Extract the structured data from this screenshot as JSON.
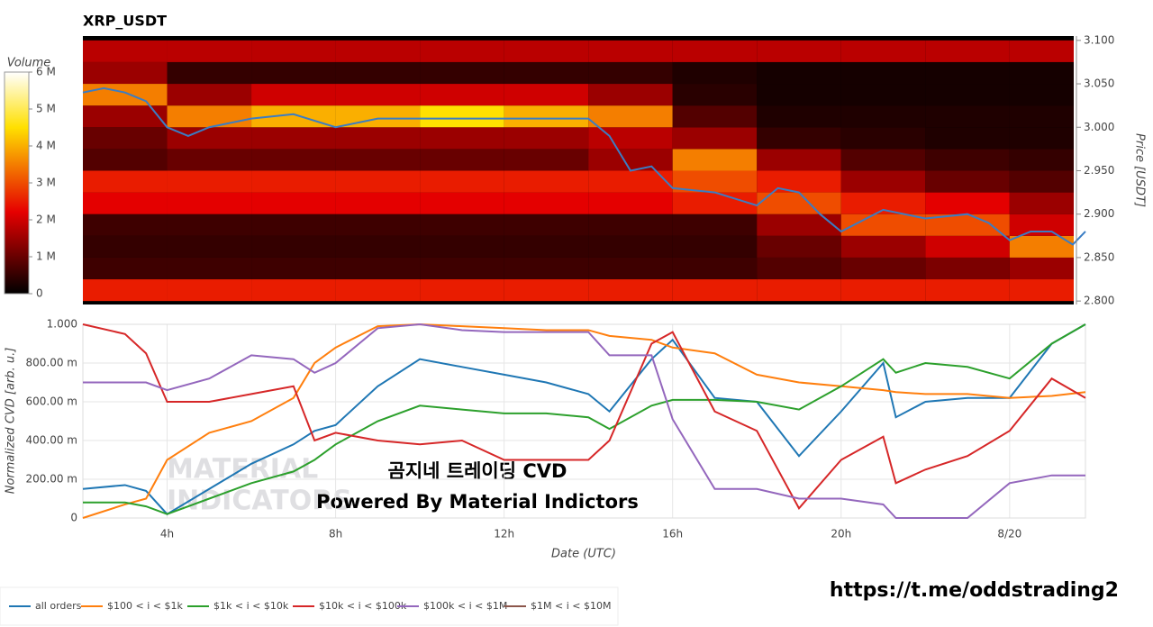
{
  "chart_data": [
    {
      "type": "heatmap",
      "title": "XRP_USDT",
      "colorbar_title": "Volume",
      "zlim": [
        0,
        6
      ],
      "zticks": [
        0,
        {
          "value": 1,
          "label": "1 M"
        },
        {
          "value": 2,
          "label": "2 M"
        },
        {
          "value": 3,
          "label": "3 M"
        },
        {
          "value": 4,
          "label": "4 M"
        },
        {
          "value": 5,
          "label": "5 M"
        },
        {
          "value": 6,
          "label": "6 M"
        }
      ],
      "y_label": "Price [USDT]",
      "ylim": [
        2.796,
        3.105
      ],
      "yticks": [
        {
          "value": 2.8,
          "label": "2.800"
        },
        {
          "value": 2.85,
          "label": "2.850"
        },
        {
          "value": 2.9,
          "label": "2.900"
        },
        {
          "value": 2.95,
          "label": "2.950"
        },
        {
          "value": 3.0,
          "label": "3.000"
        },
        {
          "value": 3.05,
          "label": "3.050"
        },
        {
          "value": 3.1,
          "label": "3.100"
        }
      ],
      "xlim": [
        2,
        25.8
      ],
      "time_bins": [
        2,
        4,
        6,
        8,
        10,
        12,
        14,
        16,
        18,
        20,
        22,
        24,
        26
      ],
      "price_bins": [
        2.8,
        2.825,
        2.85,
        2.875,
        2.9,
        2.925,
        2.95,
        2.975,
        3.0,
        3.025,
        3.05,
        3.075,
        3.1
      ],
      "volume": [
        [
          2.5,
          2.5,
          2.5,
          2.5,
          2.5,
          2.5,
          2.5,
          2.5,
          2.5,
          2.5,
          2.5,
          2.5
        ],
        [
          0.6,
          0.6,
          0.6,
          0.6,
          0.6,
          0.6,
          0.6,
          0.6,
          0.8,
          1.0,
          1.2,
          1.5
        ],
        [
          0.5,
          0.5,
          0.5,
          0.5,
          0.5,
          0.5,
          0.5,
          0.5,
          1.0,
          1.5,
          2.0,
          3.5
        ],
        [
          0.6,
          0.6,
          0.6,
          0.6,
          0.6,
          0.6,
          0.6,
          0.6,
          1.5,
          3.0,
          3.0,
          2.0
        ],
        [
          2.2,
          2.2,
          2.2,
          2.2,
          2.2,
          2.2,
          2.2,
          2.5,
          3.0,
          2.5,
          2.2,
          1.5
        ],
        [
          2.5,
          2.5,
          2.5,
          2.5,
          2.5,
          2.5,
          2.5,
          3.0,
          2.5,
          1.5,
          1.0,
          0.8
        ],
        [
          0.8,
          1.0,
          1.0,
          1.0,
          1.0,
          1.0,
          1.5,
          3.5,
          1.5,
          0.8,
          0.6,
          0.5
        ],
        [
          1.0,
          1.5,
          1.5,
          1.5,
          1.5,
          1.5,
          1.8,
          1.5,
          0.5,
          0.4,
          0.3,
          0.3
        ],
        [
          1.5,
          3.5,
          4.0,
          4.0,
          4.5,
          4.0,
          3.5,
          0.8,
          0.3,
          0.3,
          0.3,
          0.3
        ],
        [
          3.5,
          1.5,
          2.0,
          2.0,
          2.0,
          2.0,
          1.5,
          0.4,
          0.2,
          0.2,
          0.2,
          0.2
        ],
        [
          1.5,
          0.5,
          0.5,
          0.5,
          0.5,
          0.5,
          0.5,
          0.3,
          0.2,
          0.2,
          0.2,
          0.2
        ],
        [
          1.8,
          1.8,
          1.8,
          1.8,
          1.8,
          1.8,
          1.8,
          1.8,
          1.8,
          1.8,
          1.8,
          1.8
        ]
      ],
      "price_line": {
        "color": "#3a7dc4",
        "x": [
          2,
          2.5,
          3,
          3.5,
          4,
          4.5,
          5,
          6,
          7,
          8,
          9,
          10,
          11,
          12,
          13,
          14,
          14.5,
          15,
          15.5,
          16,
          17,
          18,
          18.5,
          19,
          19.5,
          20,
          21,
          22,
          23,
          23.5,
          24,
          24.5,
          25,
          25.5,
          25.8
        ],
        "values": [
          3.04,
          3.045,
          3.04,
          3.03,
          3.0,
          2.99,
          3.0,
          3.01,
          3.015,
          3.0,
          3.01,
          3.01,
          3.01,
          3.01,
          3.01,
          3.01,
          2.99,
          2.95,
          2.955,
          2.93,
          2.925,
          2.91,
          2.93,
          2.925,
          2.9,
          2.88,
          2.905,
          2.895,
          2.9,
          2.89,
          2.87,
          2.88,
          2.88,
          2.865,
          2.88
        ]
      }
    },
    {
      "type": "line",
      "x_label": "Date (UTC)",
      "y_label": "Normalized CVD [arb. u.]",
      "xlim": [
        2,
        25.8
      ],
      "xticks": [
        {
          "value": 4,
          "label": "4h"
        },
        {
          "value": 8,
          "label": "8h"
        },
        {
          "value": 12,
          "label": "12h"
        },
        {
          "value": 16,
          "label": "16h"
        },
        {
          "value": 20,
          "label": "20h"
        },
        {
          "value": 24,
          "label": "8/20"
        }
      ],
      "ylim": [
        0,
        1
      ],
      "yticks": [
        0,
        {
          "value": 0.2,
          "label": "200.00 m"
        },
        {
          "value": 0.4,
          "label": "400.00 m"
        },
        {
          "value": 0.6,
          "label": "600.00 m"
        },
        {
          "value": 0.8,
          "label": "800.00 m"
        },
        {
          "value": 1,
          "label": "1.000"
        }
      ],
      "grid": true,
      "x": [
        2,
        3,
        3.5,
        4,
        5,
        6,
        7,
        7.5,
        8,
        9,
        10,
        11,
        12,
        13,
        14,
        14.5,
        15.5,
        16,
        17,
        18,
        19,
        20,
        21,
        21.3,
        22,
        23,
        24,
        25,
        25.8
      ],
      "series": [
        {
          "name": "all orders",
          "color": "#1f77b4",
          "values": [
            0.15,
            0.17,
            0.14,
            0.02,
            0.15,
            0.28,
            0.38,
            0.45,
            0.48,
            0.68,
            0.82,
            0.78,
            0.74,
            0.7,
            0.64,
            0.55,
            0.82,
            0.92,
            0.62,
            0.6,
            0.32,
            0.55,
            0.8,
            0.52,
            0.6,
            0.62,
            0.62,
            0.9,
            1.0
          ]
        },
        {
          "name": "$100 < i < $1k",
          "color": "#ff7f0e",
          "values": [
            0.0,
            0.07,
            0.1,
            0.3,
            0.44,
            0.5,
            0.62,
            0.8,
            0.88,
            0.99,
            1.0,
            0.99,
            0.98,
            0.97,
            0.97,
            0.94,
            0.92,
            0.88,
            0.85,
            0.74,
            0.7,
            0.68,
            0.66,
            0.65,
            0.64,
            0.64,
            0.62,
            0.63,
            0.65
          ]
        },
        {
          "name": "$1k < i < $10k",
          "color": "#2ca02c",
          "values": [
            0.08,
            0.08,
            0.06,
            0.02,
            0.1,
            0.18,
            0.24,
            0.3,
            0.38,
            0.5,
            0.58,
            0.56,
            0.54,
            0.54,
            0.52,
            0.46,
            0.58,
            0.61,
            0.61,
            0.6,
            0.56,
            0.68,
            0.82,
            0.75,
            0.8,
            0.78,
            0.72,
            0.9,
            1.0
          ]
        },
        {
          "name": "$10k < i < $100k",
          "color": "#d62728",
          "values": [
            1.0,
            0.95,
            0.85,
            0.6,
            0.6,
            0.64,
            0.68,
            0.4,
            0.44,
            0.4,
            0.38,
            0.4,
            0.3,
            0.3,
            0.3,
            0.4,
            0.9,
            0.96,
            0.55,
            0.45,
            0.05,
            0.3,
            0.42,
            0.18,
            0.25,
            0.32,
            0.45,
            0.72,
            0.62
          ]
        },
        {
          "name": "$100k < i < $1M",
          "color": "#9467bd",
          "values": [
            0.7,
            0.7,
            0.7,
            0.66,
            0.72,
            0.84,
            0.82,
            0.75,
            0.8,
            0.98,
            1.0,
            0.97,
            0.96,
            0.96,
            0.96,
            0.84,
            0.84,
            0.51,
            0.15,
            0.15,
            0.1,
            0.1,
            0.07,
            0.0,
            0.0,
            0.0,
            0.18,
            0.22,
            0.22
          ]
        },
        {
          "name": "$1M < i < $10M",
          "color": "#8c564b"
        }
      ]
    }
  ],
  "watermark": {
    "logo_line1": "MATERIAL",
    "logo_line2": "INDICATORS",
    "line1": "곰지네 트레이딩 CVD",
    "line2": "Powered By Material Indictors",
    "link": "https://t.me/oddstrading2"
  }
}
